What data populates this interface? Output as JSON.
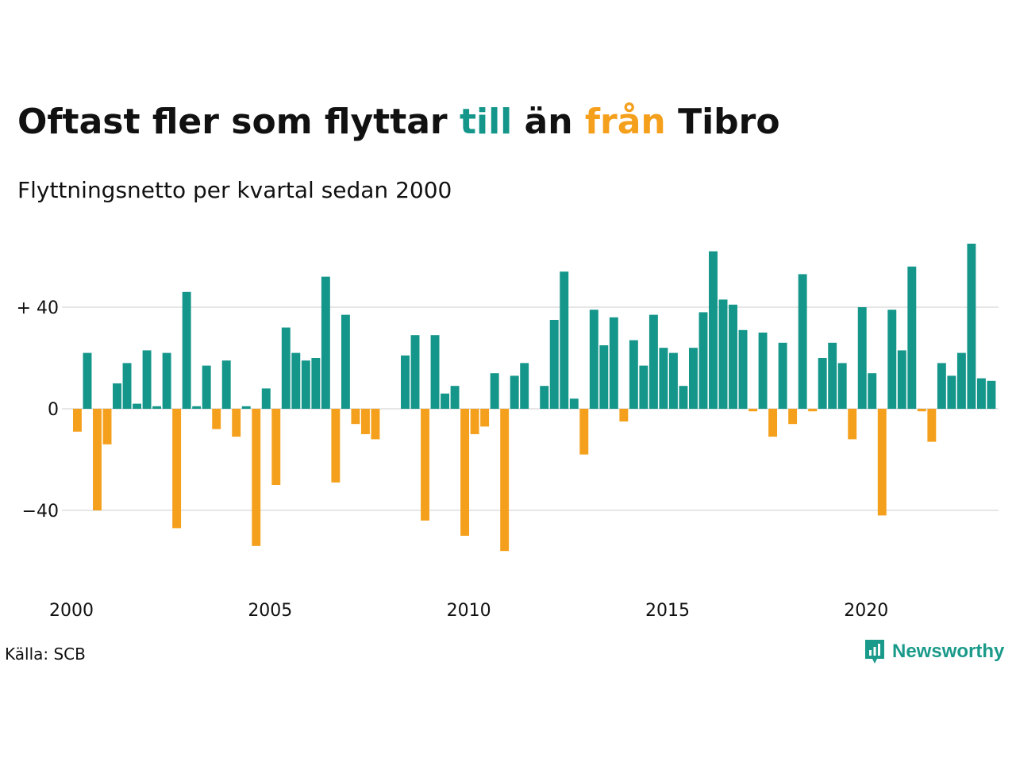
{
  "title": {
    "part1": "Oftast fler som flyttar ",
    "till": "till",
    "part2": " än ",
    "fran": "från",
    "part3": " Tibro"
  },
  "subtitle": "Flyttningsnetto per kvartal sedan 2000",
  "source": "Källa: SCB",
  "logo": {
    "text": "Newsworthy",
    "icon": "newsworthy-chart-bubble-icon"
  },
  "colors": {
    "positive": "#14968a",
    "negative": "#f5a01d",
    "grid": "#dddddd",
    "logo": "#1a9a8a"
  },
  "chart_data": {
    "type": "bar",
    "ylim": [
      -60,
      70
    ],
    "y_ticks": [
      {
        "value": 40,
        "label": "+ 40"
      },
      {
        "value": 0,
        "label": "0"
      },
      {
        "value": -40,
        "label": "−40"
      }
    ],
    "x_ticks": [
      {
        "label": "2000",
        "index": 0
      },
      {
        "label": "2005",
        "index": 20
      },
      {
        "label": "2010",
        "index": 40
      },
      {
        "label": "2015",
        "index": 60
      },
      {
        "label": "2020",
        "index": 80
      }
    ],
    "grid": true,
    "start_year": 2000,
    "values": [
      -9,
      22,
      -40,
      -14,
      10,
      18,
      2,
      23,
      1,
      22,
      -47,
      46,
      1,
      17,
      -8,
      19,
      -11,
      1,
      -54,
      8,
      -30,
      32,
      22,
      19,
      20,
      52,
      -29,
      37,
      -6,
      -10,
      -12,
      0,
      0,
      21,
      29,
      -44,
      29,
      6,
      9,
      -50,
      -10,
      -7,
      14,
      -56,
      13,
      18,
      0,
      9,
      35,
      54,
      4,
      -18,
      39,
      25,
      36,
      -5,
      27,
      17,
      37,
      24,
      22,
      9,
      24,
      38,
      62,
      43,
      41,
      31,
      -1,
      30,
      -11,
      26,
      -6,
      53,
      -1,
      20,
      26,
      18,
      -12,
      40,
      14,
      -42,
      39,
      23,
      56,
      -1,
      -13,
      18,
      13,
      22,
      65,
      12,
      11
    ]
  }
}
